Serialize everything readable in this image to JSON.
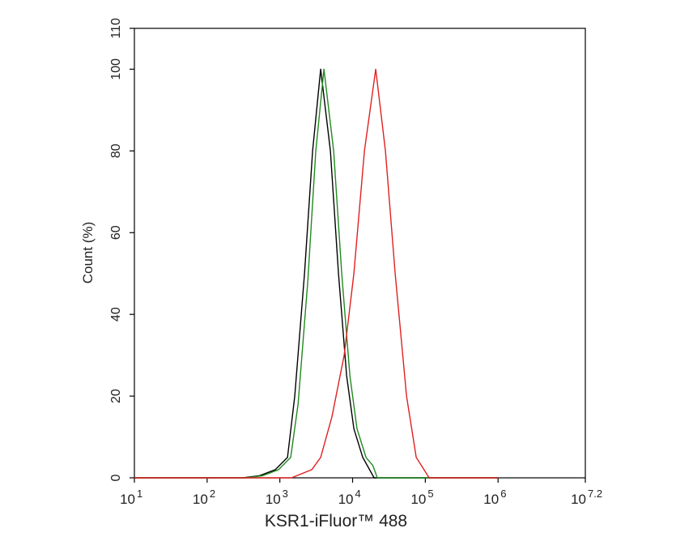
{
  "chart_data": {
    "type": "line",
    "xlabel": "KSR1-iFluor™ 488",
    "ylabel": "Count  (%)",
    "xscale": "log",
    "xlim": [
      10,
      15848931.92
    ],
    "ylim": [
      0,
      110
    ],
    "xticks": [
      {
        "value": 10,
        "label": "10",
        "sup": "1"
      },
      {
        "value": 100,
        "label": "10",
        "sup": "2"
      },
      {
        "value": 1000,
        "label": "10",
        "sup": "3"
      },
      {
        "value": 10000,
        "label": "10",
        "sup": "4"
      },
      {
        "value": 100000,
        "label": "10",
        "sup": "5"
      },
      {
        "value": 1000000,
        "label": "10",
        "sup": "6"
      },
      {
        "value": 15848931.92,
        "label": "10",
        "sup": "7.2"
      }
    ],
    "yticks": [
      0,
      20,
      40,
      60,
      80,
      100,
      110
    ],
    "series": [
      {
        "name": "black",
        "color": "#000000",
        "x": [
          10,
          311,
          519,
          867,
          1274,
          1603,
          2183,
          2820,
          3640,
          4955,
          6400,
          8280,
          10420,
          13800,
          19770,
          1000000
        ],
        "values": [
          0,
          0,
          0.5,
          2,
          5,
          20,
          50,
          80,
          100,
          80,
          50,
          25,
          12,
          5,
          0,
          0
        ]
      },
      {
        "name": "green",
        "color": "#1f8a1f",
        "x": [
          10,
          345,
          575,
          960,
          1410,
          1780,
          2420,
          3120,
          4040,
          5490,
          7090,
          9180,
          11500,
          15300,
          19000,
          21900,
          1000000
        ],
        "values": [
          0,
          0,
          0.5,
          2,
          5,
          18,
          48,
          80,
          100,
          80,
          50,
          25,
          12,
          5,
          3,
          0,
          0
        ]
      },
      {
        "name": "red",
        "color": "#e02020",
        "x": [
          10,
          1445,
          2750,
          3640,
          5210,
          7660,
          10420,
          14550,
          20800,
          28300,
          38500,
          55200,
          75000,
          113000,
          1000000
        ],
        "values": [
          0,
          0,
          2,
          5,
          15,
          30,
          50,
          80,
          100,
          80,
          50,
          20,
          5,
          0,
          0
        ]
      }
    ]
  }
}
